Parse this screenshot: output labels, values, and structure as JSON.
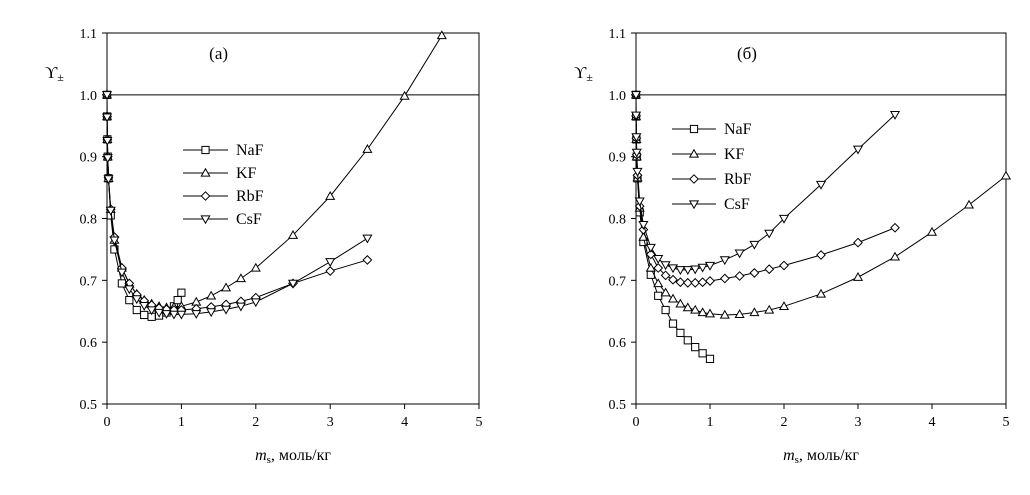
{
  "charts": [
    {
      "id": "a",
      "chart_data": {
        "type": "line",
        "title": "(а)",
        "xlabel_sym": "m",
        "xlabel_sub": "s",
        "xlabel_rest": ", моль/кг",
        "ylabel_sym": "ϒ",
        "ylabel_sub": "±",
        "xlim": [
          0,
          5
        ],
        "ylim": [
          0.5,
          1.1
        ],
        "xticks": [
          0,
          1,
          2,
          3,
          4,
          5
        ],
        "yticks": [
          0.5,
          0.6,
          0.7,
          0.8,
          0.9,
          1.0,
          1.1
        ],
        "xtick_labels": [
          "0",
          "1",
          "2",
          "3",
          "4",
          "5"
        ],
        "ytick_labels": [
          "0.5",
          "0.6",
          "0.7",
          "0.8",
          "0.9",
          "1.0",
          "1.1"
        ],
        "reference_line": 1.0,
        "legend_position": "center-left",
        "series": [
          {
            "name": "NaF",
            "marker": "square",
            "x": [
              0,
              0.001,
              0.005,
              0.01,
              0.02,
              0.05,
              0.1,
              0.2,
              0.3,
              0.4,
              0.5,
              0.6,
              0.7,
              0.8,
              0.9,
              0.95,
              1.0
            ],
            "y": [
              1.0,
              0.965,
              0.928,
              0.9,
              0.865,
              0.805,
              0.75,
              0.695,
              0.668,
              0.652,
              0.644,
              0.641,
              0.643,
              0.648,
              0.658,
              0.668,
              0.68
            ]
          },
          {
            "name": "KF",
            "marker": "triangle-up",
            "x": [
              0,
              0.001,
              0.005,
              0.01,
              0.02,
              0.05,
              0.1,
              0.2,
              0.3,
              0.4,
              0.5,
              0.6,
              0.7,
              0.8,
              0.9,
              1.0,
              1.2,
              1.4,
              1.6,
              1.8,
              2.0,
              2.5,
              3.0,
              3.5,
              4.0,
              4.5
            ],
            "y": [
              1.0,
              0.965,
              0.928,
              0.9,
              0.865,
              0.815,
              0.765,
              0.72,
              0.694,
              0.678,
              0.668,
              0.662,
              0.658,
              0.656,
              0.657,
              0.658,
              0.665,
              0.675,
              0.688,
              0.703,
              0.72,
              0.773,
              0.836,
              0.912,
              0.998,
              1.096
            ]
          },
          {
            "name": "RbF",
            "marker": "diamond",
            "x": [
              0,
              0.001,
              0.005,
              0.01,
              0.02,
              0.05,
              0.1,
              0.2,
              0.3,
              0.4,
              0.5,
              0.6,
              0.7,
              0.8,
              0.9,
              1.0,
              1.2,
              1.4,
              1.6,
              1.8,
              2.0,
              2.5,
              3.0,
              3.5
            ],
            "y": [
              1.0,
              0.965,
              0.928,
              0.9,
              0.866,
              0.815,
              0.77,
              0.72,
              0.695,
              0.677,
              0.667,
              0.66,
              0.655,
              0.653,
              0.652,
              0.652,
              0.654,
              0.657,
              0.661,
              0.666,
              0.672,
              0.695,
              0.715,
              0.733
            ]
          },
          {
            "name": "CsF",
            "marker": "triangle-down",
            "x": [
              0,
              0.001,
              0.005,
              0.01,
              0.02,
              0.05,
              0.1,
              0.2,
              0.3,
              0.4,
              0.5,
              0.6,
              0.7,
              0.8,
              0.9,
              1.0,
              1.2,
              1.4,
              1.6,
              1.8,
              2.0,
              2.5,
              3.0,
              3.5
            ],
            "y": [
              1.0,
              0.964,
              0.926,
              0.898,
              0.864,
              0.813,
              0.765,
              0.713,
              0.686,
              0.67,
              0.659,
              0.652,
              0.648,
              0.646,
              0.645,
              0.645,
              0.646,
              0.649,
              0.653,
              0.658,
              0.665,
              0.695,
              0.73,
              0.768
            ]
          }
        ]
      }
    },
    {
      "id": "b",
      "chart_data": {
        "type": "line",
        "title": "(б)",
        "xlabel_sym": "m",
        "xlabel_sub": "s",
        "xlabel_rest": ", моль/кг",
        "ylabel_sym": "ϒ",
        "ylabel_sub": "±",
        "xlim": [
          0,
          5
        ],
        "ylim": [
          0.5,
          1.1
        ],
        "xticks": [
          0,
          1,
          2,
          3,
          4,
          5
        ],
        "yticks": [
          0.5,
          0.6,
          0.7,
          0.8,
          0.9,
          1.0,
          1.1
        ],
        "xtick_labels": [
          "0",
          "1",
          "2",
          "3",
          "4",
          "5"
        ],
        "ytick_labels": [
          "0.5",
          "0.6",
          "0.7",
          "0.8",
          "0.9",
          "1.0",
          "1.1"
        ],
        "reference_line": 1.0,
        "legend_position": "top-center",
        "series": [
          {
            "name": "NaF",
            "marker": "square",
            "x": [
              0,
              0.001,
              0.005,
              0.01,
              0.02,
              0.05,
              0.1,
              0.2,
              0.3,
              0.4,
              0.5,
              0.6,
              0.7,
              0.8,
              0.9,
              1.0
            ],
            "y": [
              1.0,
              0.965,
              0.928,
              0.9,
              0.865,
              0.81,
              0.762,
              0.709,
              0.675,
              0.652,
              0.63,
              0.615,
              0.603,
              0.592,
              0.582,
              0.573
            ]
          },
          {
            "name": "KF",
            "marker": "triangle-up",
            "x": [
              0,
              0.001,
              0.005,
              0.01,
              0.02,
              0.05,
              0.1,
              0.2,
              0.3,
              0.4,
              0.5,
              0.6,
              0.7,
              0.8,
              0.9,
              1.0,
              1.2,
              1.4,
              1.6,
              1.8,
              2.0,
              2.5,
              3.0,
              3.5,
              4.0,
              4.5,
              5.0
            ],
            "y": [
              1.0,
              0.965,
              0.928,
              0.9,
              0.866,
              0.817,
              0.77,
              0.72,
              0.695,
              0.68,
              0.67,
              0.662,
              0.656,
              0.652,
              0.648,
              0.646,
              0.644,
              0.645,
              0.648,
              0.652,
              0.658,
              0.678,
              0.705,
              0.738,
              0.778,
              0.822,
              0.869
            ]
          },
          {
            "name": "RbF",
            "marker": "diamond",
            "x": [
              0,
              0.001,
              0.005,
              0.01,
              0.02,
              0.05,
              0.1,
              0.2,
              0.3,
              0.4,
              0.5,
              0.6,
              0.7,
              0.8,
              0.9,
              1.0,
              1.2,
              1.4,
              1.6,
              1.8,
              2.0,
              2.5,
              3.0,
              3.5
            ],
            "y": [
              1.0,
              0.966,
              0.93,
              0.903,
              0.87,
              0.82,
              0.782,
              0.742,
              0.72,
              0.708,
              0.701,
              0.697,
              0.696,
              0.696,
              0.697,
              0.699,
              0.703,
              0.707,
              0.712,
              0.718,
              0.724,
              0.741,
              0.761,
              0.785
            ]
          },
          {
            "name": "CsF",
            "marker": "triangle-down",
            "x": [
              0,
              0.001,
              0.005,
              0.01,
              0.02,
              0.05,
              0.1,
              0.2,
              0.3,
              0.4,
              0.5,
              0.6,
              0.7,
              0.8,
              0.9,
              1.0,
              1.2,
              1.4,
              1.6,
              1.8,
              2.0,
              2.5,
              3.0,
              3.5
            ],
            "y": [
              1.0,
              0.967,
              0.932,
              0.907,
              0.876,
              0.828,
              0.79,
              0.753,
              0.735,
              0.725,
              0.72,
              0.717,
              0.717,
              0.718,
              0.721,
              0.724,
              0.733,
              0.744,
              0.758,
              0.776,
              0.8,
              0.855,
              0.912,
              0.968
            ]
          }
        ]
      }
    }
  ]
}
